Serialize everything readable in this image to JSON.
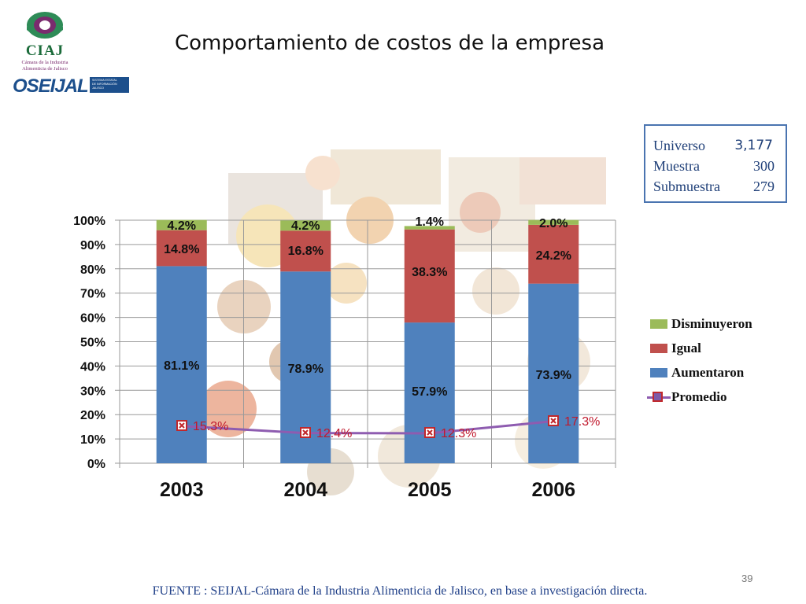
{
  "slide": {
    "title": "Comportamiento de costos de la empresa",
    "page_number": "39",
    "footer": "FUENTE : SEIJAL-Cámara de la Industria Alimenticia de Jalisco,  en base a investigación directa."
  },
  "logos": {
    "ciaj_name": "CIAJ",
    "ciaj_line1": "Cámara de la Industria",
    "ciaj_line2": "Alimenticia de Jalisco",
    "oseijal_name": "OSEIJAL",
    "oseijal_sub1": "SISTEMA ESTATAL",
    "oseijal_sub2": "DE INFORMACIÓN",
    "oseijal_sub3": "JALISCO",
    "ciaj_green": "#2e8b57",
    "ciaj_purple": "#7a2b6e",
    "oseijal_blue": "#1c4f8c"
  },
  "infobox": {
    "universo_label": "Universo",
    "universo_value": "3,177",
    "muestra_label": "Muestra",
    "muestra_value": "300",
    "submuestra_label": "Submuestra",
    "submuestra_value": "279"
  },
  "chart_data": {
    "type": "bar",
    "stacked": true,
    "categories": [
      "2003",
      "2004",
      "2005",
      "2006"
    ],
    "series": [
      {
        "name": "Aumentaron",
        "values": [
          81.1,
          78.9,
          57.9,
          73.9
        ],
        "labels": [
          "81.1%",
          "78.9%",
          "57.9%",
          "73.9%"
        ],
        "color": "#4f81bd"
      },
      {
        "name": "Igual",
        "values": [
          14.8,
          16.8,
          38.3,
          24.2
        ],
        "labels": [
          "14.8%",
          "16.8%",
          "38.3%",
          "24.2%"
        ],
        "color": "#c0504d"
      },
      {
        "name": "Disminuyeron",
        "values": [
          4.2,
          4.2,
          1.4,
          2.0
        ],
        "labels": [
          "4.2%",
          "4.2%",
          "1.4%",
          "2.0%"
        ],
        "color": "#9bbb59"
      }
    ],
    "line_series": {
      "name": "Promedio",
      "values": [
        15.3,
        12.4,
        12.3,
        17.3
      ],
      "labels": [
        "15.3%",
        "12.4%",
        "12.3%",
        "17.3%"
      ],
      "line_color": "#8e5cb0",
      "label_color": "#c0182c",
      "marker_color": "#c0282c"
    },
    "y_ticks": [
      "0%",
      "10%",
      "20%",
      "30%",
      "40%",
      "50%",
      "60%",
      "70%",
      "80%",
      "90%",
      "100%"
    ],
    "ylim": [
      0,
      100
    ],
    "grid": true,
    "legend_position": "right",
    "legend_order": [
      "Disminuyeron",
      "Igual",
      "Aumentaron",
      "Promedio"
    ]
  }
}
